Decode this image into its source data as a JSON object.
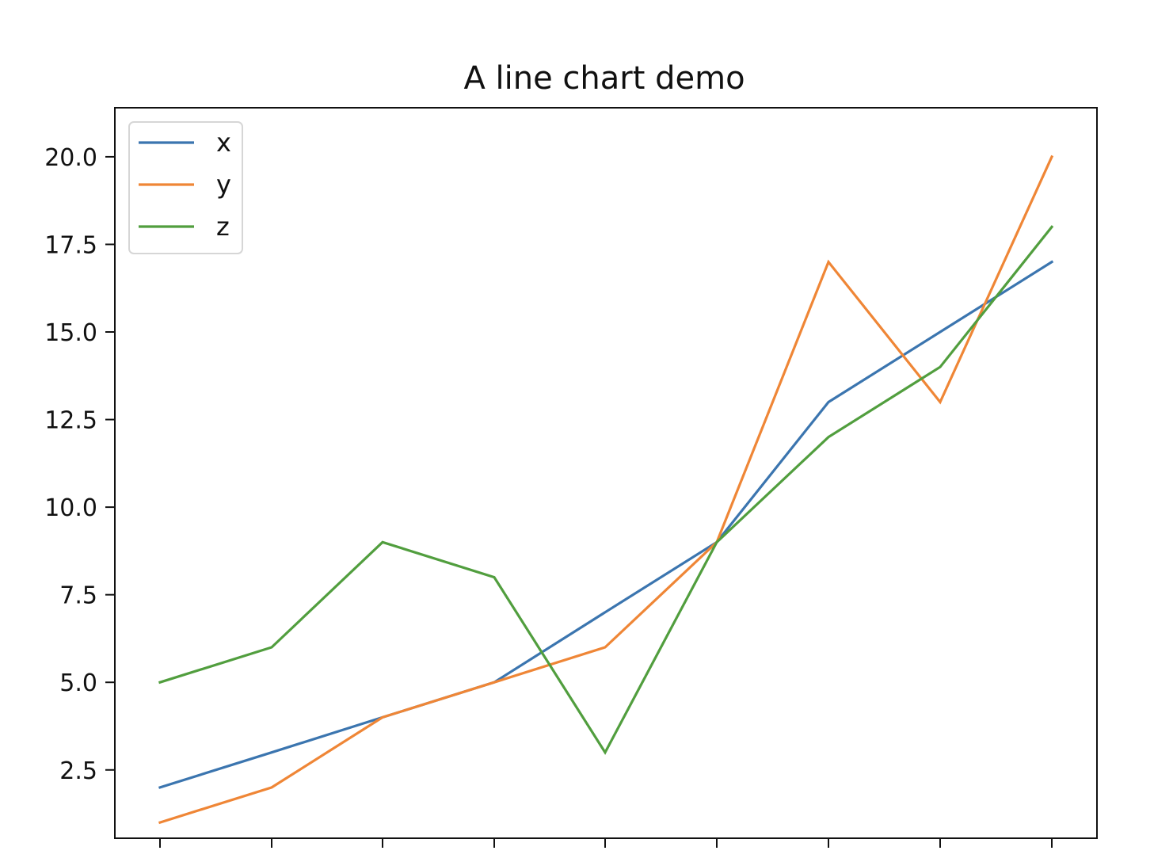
{
  "chart_data": {
    "type": "line",
    "title": "A line chart demo",
    "xlabel": "",
    "ylabel": "",
    "x": [
      0,
      1,
      2,
      3,
      4,
      5,
      6,
      7,
      8
    ],
    "x_tick_labels_visible": false,
    "ylim": [
      0.55,
      21.4
    ],
    "y_ticks": [
      2.5,
      5.0,
      7.5,
      10.0,
      12.5,
      15.0,
      17.5,
      20.0
    ],
    "y_tick_labels": [
      "2.5",
      "5.0",
      "7.5",
      "10.0",
      "12.5",
      "15.0",
      "17.5",
      "20.0"
    ],
    "grid": false,
    "legend_position": "upper-left",
    "series": [
      {
        "name": "x",
        "color": "#3b75af",
        "values": [
          2,
          3,
          4,
          5,
          7,
          9,
          13,
          15,
          17
        ]
      },
      {
        "name": "y",
        "color": "#ef8636",
        "values": [
          1,
          2,
          4,
          5,
          6,
          9,
          17,
          13,
          20
        ]
      },
      {
        "name": "z",
        "color": "#519e3e",
        "values": [
          5,
          6,
          9,
          8,
          3,
          9,
          12,
          14,
          18
        ]
      }
    ]
  }
}
